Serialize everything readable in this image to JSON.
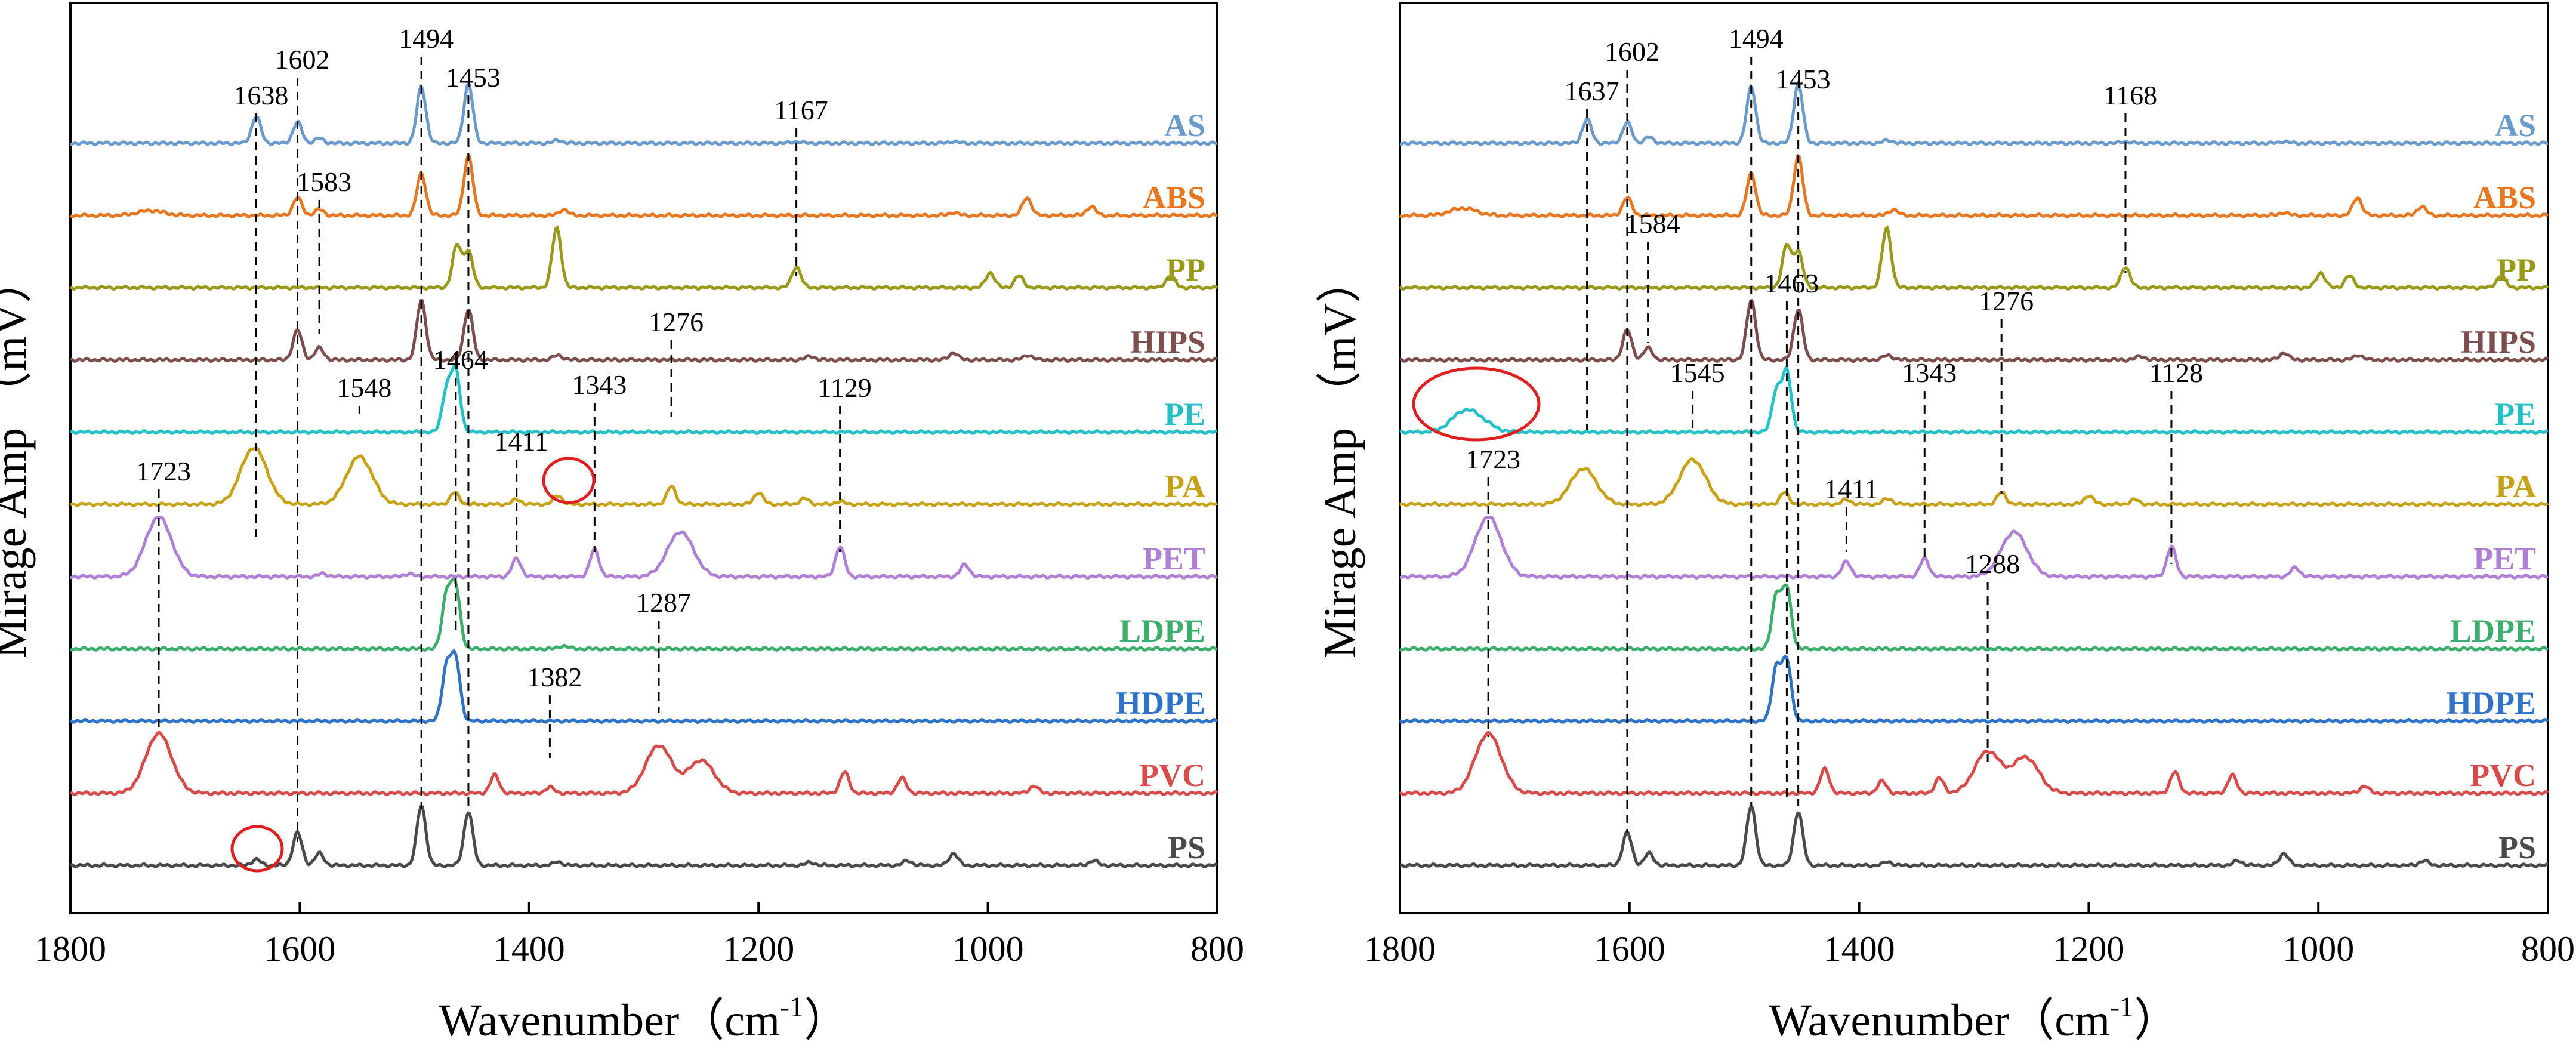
{
  "chart_data": [
    {
      "type": "line",
      "panel": "left",
      "xlabel": "Wavenumber（cm",
      "xlabel_sup": "-1",
      "xlabel_end": "）",
      "ylabel": "Mirage Amp （mV）",
      "xlim": [
        1800,
        800
      ],
      "xticks": [
        "1800",
        "1600",
        "1400",
        "1200",
        "1000",
        "800"
      ],
      "series": [
        {
          "name": "AS",
          "color": "#6b9bcd",
          "peaks": [
            [
              1638,
              0.45
            ],
            [
              1602,
              0.35
            ],
            [
              1583,
              0.08
            ],
            [
              1494,
              0.95
            ],
            [
              1453,
              1.0
            ],
            [
              1375,
              0.05
            ],
            [
              1167,
              0.03
            ],
            [
              1030,
              0.03
            ]
          ]
        },
        {
          "name": "ABS",
          "color": "#e87722",
          "peaks": [
            [
              1730,
              0.08
            ],
            [
              1602,
              0.3
            ],
            [
              1583,
              0.1
            ],
            [
              1494,
              0.7
            ],
            [
              1453,
              1.0
            ],
            [
              1370,
              0.1
            ],
            [
              1030,
              0.05
            ],
            [
              966,
              0.3
            ],
            [
              910,
              0.15
            ]
          ]
        },
        {
          "name": "PP",
          "color": "#9a9a1a",
          "peaks": [
            [
              1463,
              0.7
            ],
            [
              1453,
              0.6
            ],
            [
              1376,
              1.0
            ],
            [
              1167,
              0.35
            ],
            [
              998,
              0.25
            ],
            [
              973,
              0.2
            ],
            [
              841,
              0.2
            ]
          ]
        },
        {
          "name": "HIPS",
          "color": "#7d4e4e",
          "peaks": [
            [
              1602,
              0.5
            ],
            [
              1583,
              0.2
            ],
            [
              1494,
              1.0
            ],
            [
              1453,
              0.85
            ],
            [
              1375,
              0.08
            ],
            [
              1155,
              0.06
            ],
            [
              1030,
              0.12
            ],
            [
              965,
              0.08
            ]
          ]
        },
        {
          "name": "PE",
          "color": "#23c2c8",
          "peaks": [
            [
              1472,
              0.7
            ],
            [
              1464,
              1.0
            ]
          ]
        },
        {
          "name": "PA",
          "color": "#c8a216",
          "peaks": [
            [
              1640,
              0.95
            ],
            [
              1548,
              0.8
            ],
            [
              1465,
              0.2
            ],
            [
              1411,
              0.08
            ],
            [
              1375,
              0.15
            ],
            [
              1276,
              0.3
            ],
            [
              1200,
              0.2
            ],
            [
              1160,
              0.1
            ],
            [
              1129,
              0.05
            ]
          ]
        },
        {
          "name": "PET",
          "color": "#b07fd6",
          "peaks": [
            [
              1723,
              1.0
            ],
            [
              1580,
              0.05
            ],
            [
              1505,
              0.05
            ],
            [
              1411,
              0.3
            ],
            [
              1343,
              0.45
            ],
            [
              1268,
              0.75
            ],
            [
              1129,
              0.5
            ],
            [
              1020,
              0.2
            ]
          ]
        },
        {
          "name": "LDPE",
          "color": "#3cae6e",
          "peaks": [
            [
              1472,
              0.9
            ],
            [
              1464,
              1.0
            ],
            [
              1370,
              0.05
            ]
          ]
        },
        {
          "name": "HDPE",
          "color": "#2f73c9",
          "peaks": [
            [
              1472,
              0.9
            ],
            [
              1464,
              1.0
            ]
          ]
        },
        {
          "name": "PVC",
          "color": "#d94a4a",
          "peaks": [
            [
              1723,
              1.0
            ],
            [
              1430,
              0.3
            ],
            [
              1382,
              0.1
            ],
            [
              1287,
              0.8
            ],
            [
              1250,
              0.55
            ],
            [
              1125,
              0.35
            ],
            [
              1075,
              0.25
            ],
            [
              960,
              0.12
            ]
          ]
        },
        {
          "name": "PS",
          "color": "#4a4a4a",
          "peaks": [
            [
              1638,
              0.1
            ],
            [
              1602,
              0.55
            ],
            [
              1583,
              0.2
            ],
            [
              1494,
              1.0
            ],
            [
              1453,
              0.9
            ],
            [
              1375,
              0.06
            ],
            [
              1155,
              0.05
            ],
            [
              1070,
              0.08
            ],
            [
              1030,
              0.2
            ],
            [
              908,
              0.08
            ]
          ]
        }
      ],
      "peak_labels": [
        {
          "text": "1638",
          "x": 1638
        },
        {
          "text": "1602",
          "x": 1602
        },
        {
          "text": "1494",
          "x": 1494
        },
        {
          "text": "1453",
          "x": 1453
        },
        {
          "text": "1167",
          "x": 1167
        },
        {
          "text": "1583",
          "x": 1583
        },
        {
          "text": "1276",
          "x": 1276
        },
        {
          "text": "1548",
          "x": 1548
        },
        {
          "text": "1464",
          "x": 1464
        },
        {
          "text": "1343",
          "x": 1343
        },
        {
          "text": "1129",
          "x": 1129
        },
        {
          "text": "1411",
          "x": 1411
        },
        {
          "text": "1723",
          "x": 1723
        },
        {
          "text": "1287",
          "x": 1287
        },
        {
          "text": "1382",
          "x": 1382
        }
      ]
    },
    {
      "type": "line",
      "panel": "right",
      "xlabel": "Wavenumber（cm",
      "xlabel_sup": "-1",
      "xlabel_end": "）",
      "ylabel": "Mirage Amp （mV）",
      "xlim": [
        1800,
        800
      ],
      "xticks": [
        "1800",
        "1600",
        "1400",
        "1200",
        "1000",
        "800"
      ],
      "series": [
        {
          "name": "AS",
          "color": "#6b9bcd",
          "peaks": [
            [
              1637,
              0.4
            ],
            [
              1602,
              0.35
            ],
            [
              1583,
              0.1
            ],
            [
              1494,
              0.95
            ],
            [
              1453,
              1.0
            ],
            [
              1375,
              0.05
            ],
            [
              1168,
              0.03
            ],
            [
              1030,
              0.03
            ]
          ]
        },
        {
          "name": "ABS",
          "color": "#e87722",
          "peaks": [
            [
              1745,
              0.12
            ],
            [
              1602,
              0.3
            ],
            [
              1494,
              0.7
            ],
            [
              1453,
              1.0
            ],
            [
              1370,
              0.1
            ],
            [
              1030,
              0.05
            ],
            [
              966,
              0.3
            ],
            [
              910,
              0.15
            ]
          ]
        },
        {
          "name": "PP",
          "color": "#9a9a1a",
          "peaks": [
            [
              1463,
              0.7
            ],
            [
              1453,
              0.6
            ],
            [
              1376,
              1.0
            ],
            [
              1168,
              0.35
            ],
            [
              998,
              0.25
            ],
            [
              973,
              0.2
            ],
            [
              841,
              0.2
            ]
          ]
        },
        {
          "name": "HIPS",
          "color": "#7d4e4e",
          "peaks": [
            [
              1602,
              0.5
            ],
            [
              1584,
              0.2
            ],
            [
              1494,
              1.0
            ],
            [
              1453,
              0.85
            ],
            [
              1375,
              0.08
            ],
            [
              1155,
              0.06
            ],
            [
              1030,
              0.12
            ],
            [
              965,
              0.08
            ]
          ]
        },
        {
          "name": "PE",
          "color": "#23c2c8",
          "peaks": [
            [
              1745,
              0.3
            ],
            [
              1730,
              0.15
            ],
            [
              1472,
              0.7
            ],
            [
              1463,
              1.0
            ]
          ]
        },
        {
          "name": "PA",
          "color": "#c8a216",
          "peaks": [
            [
              1640,
              0.6
            ],
            [
              1545,
              0.75
            ],
            [
              1465,
              0.2
            ],
            [
              1411,
              0.08
            ],
            [
              1375,
              0.1
            ],
            [
              1276,
              0.2
            ],
            [
              1200,
              0.15
            ],
            [
              1160,
              0.08
            ]
          ]
        },
        {
          "name": "PET",
          "color": "#b07fd6",
          "peaks": [
            [
              1723,
              1.0
            ],
            [
              1411,
              0.25
            ],
            [
              1343,
              0.3
            ],
            [
              1265,
              0.75
            ],
            [
              1128,
              0.5
            ],
            [
              1020,
              0.15
            ]
          ]
        },
        {
          "name": "LDPE",
          "color": "#3cae6e",
          "peaks": [
            [
              1472,
              0.9
            ],
            [
              1463,
              1.0
            ]
          ]
        },
        {
          "name": "HDPE",
          "color": "#2f73c9",
          "peaks": [
            [
              1472,
              0.9
            ],
            [
              1463,
              1.0
            ]
          ]
        },
        {
          "name": "PVC",
          "color": "#d94a4a",
          "peaks": [
            [
              1723,
              1.0
            ],
            [
              1430,
              0.4
            ],
            [
              1380,
              0.2
            ],
            [
              1330,
              0.25
            ],
            [
              1288,
              0.7
            ],
            [
              1255,
              0.6
            ],
            [
              1125,
              0.35
            ],
            [
              1075,
              0.3
            ],
            [
              960,
              0.12
            ]
          ]
        },
        {
          "name": "PS",
          "color": "#4a4a4a",
          "peaks": [
            [
              1602,
              0.55
            ],
            [
              1583,
              0.2
            ],
            [
              1494,
              1.0
            ],
            [
              1453,
              0.9
            ],
            [
              1375,
              0.06
            ],
            [
              1070,
              0.08
            ],
            [
              1030,
              0.2
            ],
            [
              908,
              0.08
            ]
          ]
        }
      ],
      "peak_labels": [
        {
          "text": "1637",
          "x": 1637
        },
        {
          "text": "1602",
          "x": 1602
        },
        {
          "text": "1494",
          "x": 1494
        },
        {
          "text": "1453",
          "x": 1453
        },
        {
          "text": "1168",
          "x": 1168
        },
        {
          "text": "1584",
          "x": 1584
        },
        {
          "text": "1463",
          "x": 1463
        },
        {
          "text": "1276",
          "x": 1276
        },
        {
          "text": "1545",
          "x": 1545
        },
        {
          "text": "1343",
          "x": 1343
        },
        {
          "text": "1128",
          "x": 1128
        },
        {
          "text": "1723",
          "x": 1723
        },
        {
          "text": "1411",
          "x": 1411
        },
        {
          "text": "1288",
          "x": 1288
        }
      ]
    }
  ]
}
